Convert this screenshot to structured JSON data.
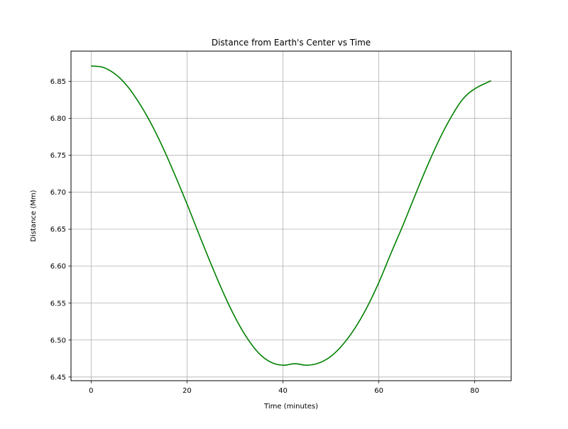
{
  "chart_data": {
    "type": "line",
    "title": "Distance from Earth's Center vs Time",
    "xlabel": "Time (minutes)",
    "ylabel": "Distance (Mm)",
    "xlim": [
      -4.2,
      87.6
    ],
    "ylim": [
      6.445,
      6.891
    ],
    "xticks": [
      0,
      20,
      40,
      60,
      80
    ],
    "xtick_labels": [
      "0",
      "20",
      "40",
      "60",
      "80"
    ],
    "yticks": [
      6.45,
      6.5,
      6.55,
      6.6,
      6.65,
      6.7,
      6.75,
      6.8,
      6.85
    ],
    "ytick_labels": [
      "6.45",
      "6.50",
      "6.55",
      "6.60",
      "6.65",
      "6.70",
      "6.75",
      "6.80",
      "6.85"
    ],
    "grid": true,
    "line_color": "#008000",
    "series": [
      {
        "x": [
          0,
          2.5,
          5,
          7.5,
          10,
          12.5,
          15,
          17.5,
          20,
          22.5,
          25,
          27.5,
          30,
          32.5,
          35,
          37.5,
          40,
          42.5,
          45,
          47.5,
          50,
          52.5,
          55,
          57.5,
          60,
          62.5,
          65,
          67.5,
          70,
          72.5,
          75,
          77.5,
          80,
          83.4
        ],
        "y": [
          6.871,
          6.869,
          6.86,
          6.844,
          6.821,
          6.793,
          6.76,
          6.723,
          6.684,
          6.643,
          6.603,
          6.565,
          6.531,
          6.503,
          6.482,
          6.47,
          6.466,
          6.468,
          6.466,
          6.469,
          6.478,
          6.494,
          6.516,
          6.544,
          6.578,
          6.617,
          6.655,
          6.695,
          6.734,
          6.77,
          6.801,
          6.826,
          6.84,
          6.851
        ]
      }
    ]
  }
}
